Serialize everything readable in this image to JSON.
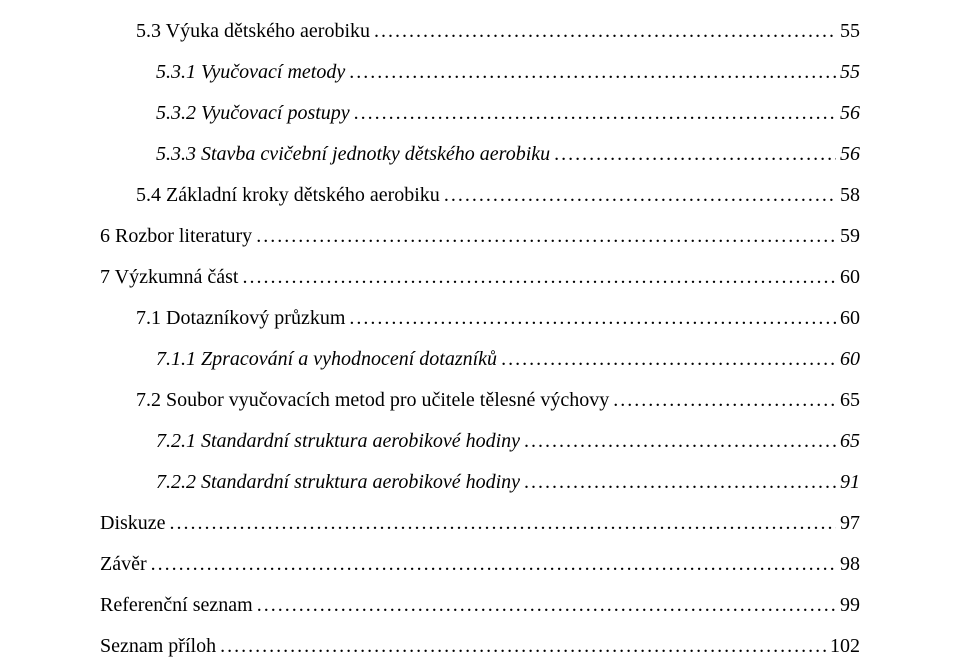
{
  "font": {
    "family": "Times New Roman",
    "base_size_pt": 15
  },
  "colors": {
    "text": "#000000",
    "background": "#ffffff"
  },
  "toc": [
    {
      "label": "5.3 Výuka dětského aerobiku",
      "page": "55",
      "indent": 1,
      "italic": false
    },
    {
      "label": "5.3.1 Vyučovací metody",
      "page": "55",
      "indent": 2,
      "italic": true
    },
    {
      "label": "5.3.2 Vyučovací postupy",
      "page": "56",
      "indent": 2,
      "italic": true
    },
    {
      "label": "5.3.3 Stavba cvičební jednotky dětského aerobiku",
      "page": "56",
      "indent": 2,
      "italic": true
    },
    {
      "label": "5.4 Základní kroky dětského aerobiku",
      "page": "58",
      "indent": 1,
      "italic": false
    },
    {
      "label": "6 Rozbor literatury",
      "page": "59",
      "indent": 0,
      "italic": false,
      "gap": true
    },
    {
      "label": "7 Výzkumná část",
      "page": "60",
      "indent": 0,
      "italic": false
    },
    {
      "label": "7.1 Dotazníkový průzkum",
      "page": "60",
      "indent": 1,
      "italic": false
    },
    {
      "label": "7.1.1 Zpracování a vyhodnocení dotazníků",
      "page": "60",
      "indent": 2,
      "italic": true
    },
    {
      "label": "7.2 Soubor vyučovacích metod pro učitele tělesné výchovy",
      "page": "65",
      "indent": 1,
      "italic": false
    },
    {
      "label": "7.2.1 Standardní struktura aerobikové hodiny",
      "page": "65",
      "indent": 2,
      "italic": true
    },
    {
      "label": "7.2.2 Standardní struktura aerobikové hodiny",
      "page": "91",
      "indent": 2,
      "italic": true
    },
    {
      "label": "Diskuze",
      "page": "97",
      "indent": 0,
      "italic": false,
      "gap": true
    },
    {
      "label": "Závěr",
      "page": "98",
      "indent": 0,
      "italic": false
    },
    {
      "label": "Referenční seznam",
      "page": "99",
      "indent": 0,
      "italic": false
    },
    {
      "label": "Seznam příloh",
      "page": "102",
      "indent": 0,
      "italic": false
    }
  ]
}
